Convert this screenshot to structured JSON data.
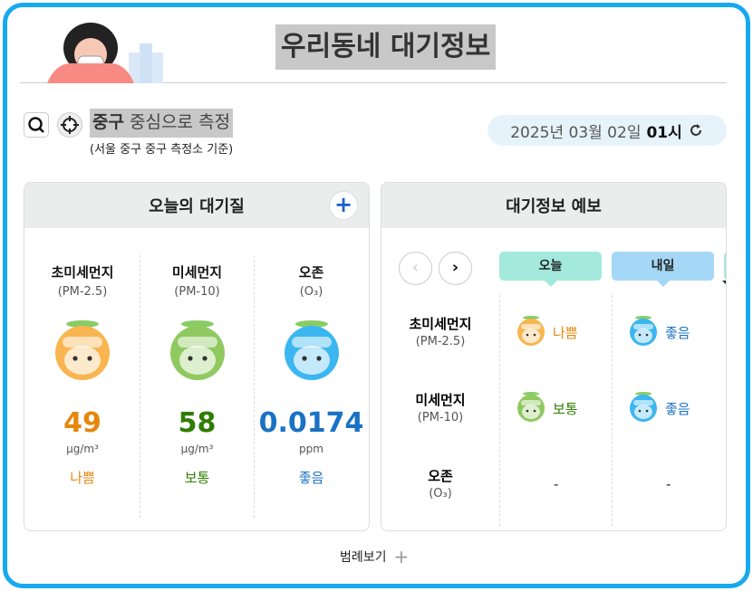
{
  "header": {
    "title": "우리동네 대기정보"
  },
  "location": {
    "district": "중구",
    "label": "중심으로 측정",
    "sub": "(서울 중구 중구 측정소 기준)"
  },
  "datetime": {
    "date": "2025년 03월 02일",
    "hour": "01시"
  },
  "today": {
    "title": "오늘의 대기질",
    "items": [
      {
        "name": "초미세먼지",
        "sub": "(PM-2.5)",
        "value": "49",
        "unit": "μg/m³",
        "grade": "나쁨",
        "color": "#e5870c"
      },
      {
        "name": "미세먼지",
        "sub": "(PM-10)",
        "value": "58",
        "unit": "μg/m³",
        "grade": "보통",
        "color": "#2f7d00"
      },
      {
        "name": "오존",
        "sub": "(O₃)",
        "value": "0.0174",
        "unit": "ppm",
        "grade": "좋음",
        "color": "#1a72c4"
      }
    ]
  },
  "forecast": {
    "title": "대기정보 예보",
    "tabs": [
      {
        "label": "오늘",
        "color": "#a3e9dc"
      },
      {
        "label": "내일",
        "color": "#a5d8f7"
      }
    ],
    "rows": [
      {
        "name": "초미세먼지",
        "sub": "(PM-2.5)",
        "cells": [
          {
            "grade": "나쁨",
            "color": "#e5870c"
          },
          {
            "grade": "좋음",
            "color": "#1a72c4"
          }
        ]
      },
      {
        "name": "미세먼지",
        "sub": "(PM-10)",
        "cells": [
          {
            "grade": "보통",
            "color": "#2f7d00"
          },
          {
            "grade": "좋음",
            "color": "#1a72c4"
          }
        ]
      },
      {
        "name": "오존",
        "sub": "(O₃)",
        "cells": [
          {
            "grade": "-",
            "color": "#222"
          },
          {
            "grade": "-",
            "color": "#222"
          }
        ]
      }
    ]
  },
  "legend": {
    "label": "범례보기"
  }
}
